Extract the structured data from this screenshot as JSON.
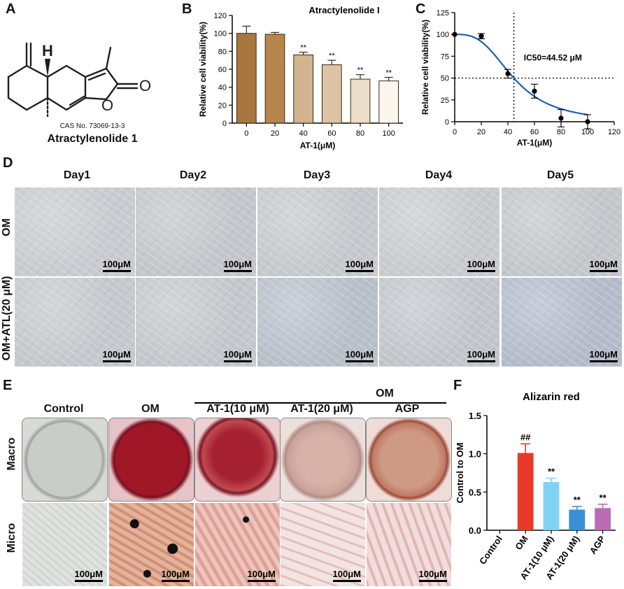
{
  "panel_letters": {
    "a": "A",
    "b": "B",
    "c": "C",
    "d": "D",
    "e": "E",
    "f": "F"
  },
  "panel_a": {
    "cas": "CAS No. 73069-13-3",
    "name": "Atractylenolide 1",
    "h_label": "H",
    "o1": "O",
    "o2": "O"
  },
  "panel_d": {
    "days": [
      "Day1",
      "Day2",
      "Day3",
      "Day4",
      "Day5"
    ],
    "rows": [
      "OM",
      "OM+ATL(20 μM)"
    ],
    "scale_label": "100μM"
  },
  "panel_e": {
    "group_label": "OM",
    "columns": [
      "Control",
      "OM",
      "AT-1(10 μM)",
      "AT-1(20 μM)",
      "AGP"
    ],
    "rows": [
      "Macro",
      "Micro"
    ],
    "scale_label": "100μM"
  },
  "colors": {
    "ochre": "#A8773E",
    "panel_f_om": "#E8392A",
    "panel_f_at10": "#7FD3F2",
    "panel_f_at20": "#3A8FD6",
    "panel_f_agp": "#B86DB5",
    "curve": "#1F5FB5"
  },
  "chart_data": [
    {
      "id": "B",
      "type": "bar",
      "title": "Atractylenolide I",
      "xlabel": "AT-1(μM)",
      "ylabel": "Relative cell viability(%)",
      "ylim": [
        0,
        120
      ],
      "yticks": [
        0,
        20,
        40,
        60,
        80,
        100,
        120
      ],
      "categories": [
        "0",
        "20",
        "40",
        "60",
        "80",
        "100"
      ],
      "values": [
        100,
        99,
        76,
        65,
        49,
        47
      ],
      "errors": [
        8,
        2,
        3,
        5,
        5,
        4
      ],
      "significance": [
        "",
        "",
        "**",
        "**",
        "**",
        "**"
      ],
      "bar_colors": [
        "#A8773E",
        "#B8864D",
        "#D2B48F",
        "#DCC4A4",
        "#ECDDC8",
        "#FBF6EE"
      ]
    },
    {
      "id": "C",
      "type": "scatter",
      "xlabel": "AT-1(μM)",
      "ylabel": "Relative cell viability(%)",
      "xlim": [
        0,
        120
      ],
      "ylim": [
        0,
        125
      ],
      "xticks": [
        0,
        20,
        40,
        60,
        80,
        100,
        120
      ],
      "yticks": [
        0,
        25,
        50,
        75,
        100,
        125
      ],
      "points": [
        {
          "x": 0,
          "y": 100,
          "err": 0
        },
        {
          "x": 20,
          "y": 98,
          "err": 3
        },
        {
          "x": 40,
          "y": 55,
          "err": 5
        },
        {
          "x": 60,
          "y": 35,
          "err": 8
        },
        {
          "x": 80,
          "y": 4,
          "err": 10
        },
        {
          "x": 100,
          "y": 0,
          "err": 8
        }
      ],
      "fit": {
        "model": "sigmoid",
        "top": 100,
        "bottom": 0,
        "ic50": 44.52,
        "hill": 3
      },
      "annotation": "IC50=44.52 μM",
      "ref_x": 44.52,
      "ref_y": 50
    },
    {
      "id": "F",
      "type": "bar",
      "title": "Alizarin red",
      "ylabel": "Control to OM",
      "ylim": [
        0,
        1.5
      ],
      "yticks": [
        "0.0",
        "0.5",
        "1.0",
        "1.5"
      ],
      "categories": [
        "Control",
        "OM",
        "AT-1(10 μM)",
        "AT-1(20 μM)",
        "AGP"
      ],
      "values": [
        0,
        1.01,
        0.63,
        0.27,
        0.29
      ],
      "errors": [
        0,
        0.12,
        0.05,
        0.04,
        0.05
      ],
      "significance": [
        "",
        "##",
        "**",
        "**",
        "**"
      ],
      "bar_colors": [
        "#ffffff",
        "#E8392A",
        "#7FD3F2",
        "#3A8FD6",
        "#B86DB5"
      ]
    }
  ]
}
